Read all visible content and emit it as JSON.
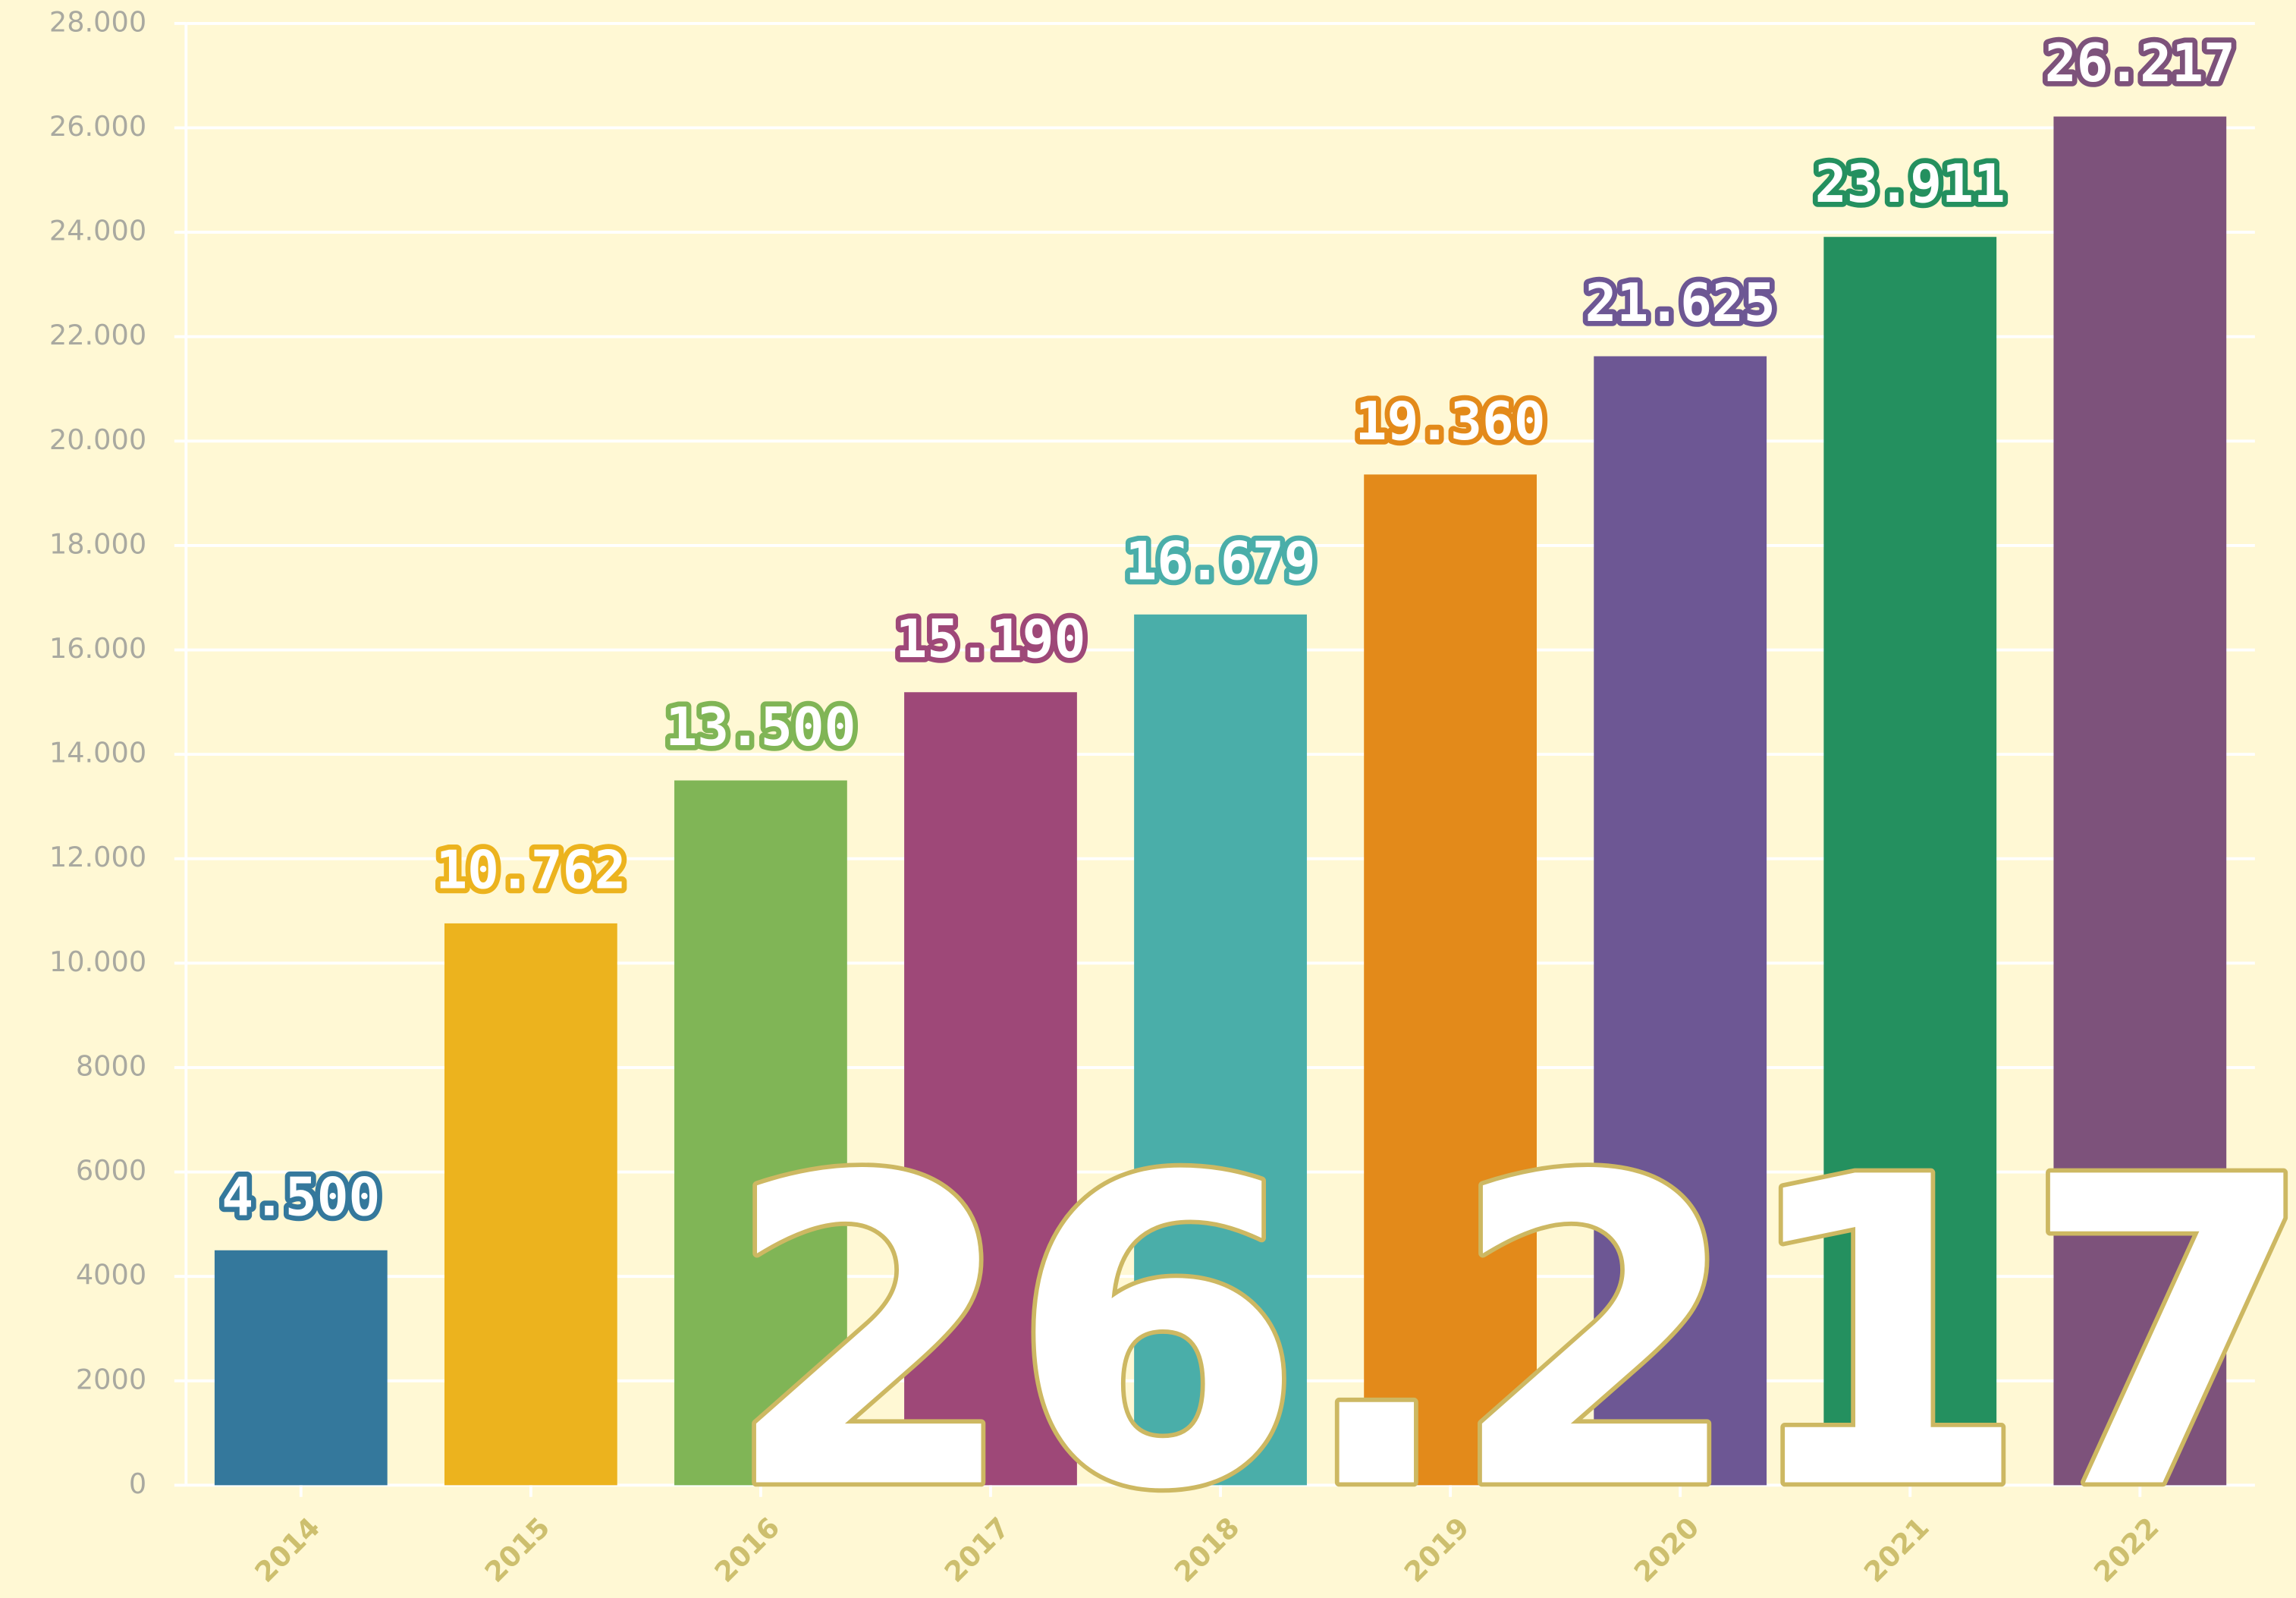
{
  "chart_data": {
    "type": "bar",
    "categories": [
      "2014",
      "2015",
      "2016",
      "2017",
      "2018",
      "2019",
      "2020",
      "2021",
      "2022"
    ],
    "values": [
      4500,
      10762,
      13500,
      15190,
      16679,
      19360,
      21625,
      23911,
      26217
    ],
    "value_labels": [
      "4.500",
      "10.762",
      "13.500",
      "15.190",
      "16.679",
      "19.360",
      "21.625",
      "23.911",
      "26.217"
    ],
    "colors": [
      "#34789c",
      "#ecb31e",
      "#80b556",
      "#9e4878",
      "#4aaea9",
      "#e38a1a",
      "#6d5794",
      "#24905f",
      "#7d527b"
    ],
    "annotation": "26.217",
    "ylim": [
      0,
      28000
    ],
    "yticks": [
      0,
      2000,
      4000,
      6000,
      8000,
      {
        "value": 10000,
        "label": "10.000"
      },
      {
        "value": 12000,
        "label": "12.000"
      },
      {
        "value": 14000,
        "label": "14.000"
      },
      {
        "value": 16000,
        "label": "16.000"
      },
      {
        "value": 18000,
        "label": "18.000"
      },
      {
        "value": 20000,
        "label": "20.000"
      },
      {
        "value": 22000,
        "label": "22.000"
      },
      {
        "value": 24000,
        "label": "24.000"
      },
      {
        "value": 26000,
        "label": "26.000"
      },
      {
        "value": 28000,
        "label": "28.000"
      }
    ],
    "grid": true
  }
}
